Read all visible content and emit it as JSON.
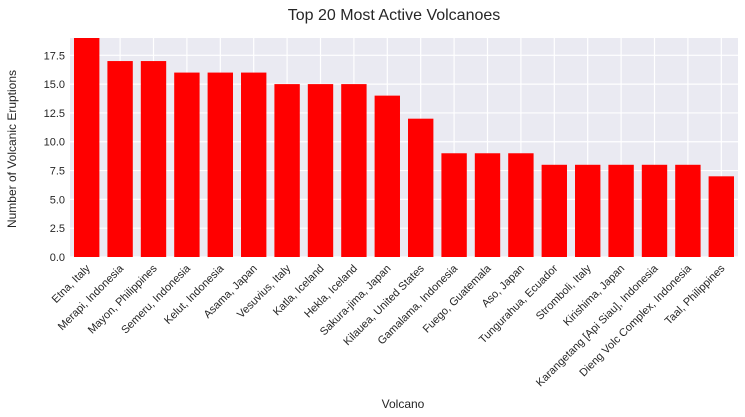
{
  "chart_data": {
    "type": "bar",
    "title": "Top 20 Most Active Volcanoes",
    "xlabel": "Volcano",
    "ylabel": "Number of Volcanic Eruptions",
    "categories": [
      "Etna, Italy",
      "Merapi, Indonesia",
      "Mayon, Philippines",
      "Semeru, Indonesia",
      "Kelut, Indonesia",
      "Asama, Japan",
      "Vesuvius, Italy",
      "Katla, Iceland",
      "Hekla, Iceland",
      "Sakura-jima, Japan",
      "Kilauea, United States",
      "Gamalama, Indonesia",
      "Fuego, Guatemala",
      "Aso, Japan",
      "Tungurahua, Ecuador",
      "Stromboli, Italy",
      "Kirishima, Japan",
      "Karangetang [Api Siau], Indonesia",
      "Dieng Volc Complex, Indonesia",
      "Taal, Philippines"
    ],
    "values": [
      19,
      17,
      17,
      16,
      16,
      16,
      15,
      15,
      15,
      14,
      12,
      9,
      9,
      9,
      8,
      8,
      8,
      8,
      8,
      7
    ],
    "ylim": [
      0,
      19
    ],
    "yticks": [
      "0.0",
      "2.5",
      "5.0",
      "7.5",
      "10.0",
      "12.5",
      "15.0",
      "17.5"
    ],
    "grid": true,
    "bar_color": "#ff0000",
    "background_color": "#eaeaf2"
  }
}
